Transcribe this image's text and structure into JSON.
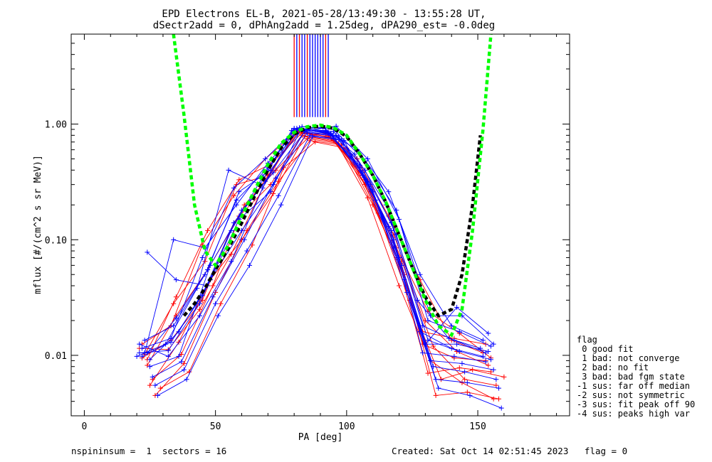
{
  "title_line1": "EPD Electrons EL-B, 2021-05-28/13:49:30 - 13:55:28 UT,",
  "title_line2": "dSectr2add = 0, dPhAng2add = 1.25deg, dPA290_est=  -0.0deg",
  "footer": {
    "left": "nspininsum =  1  sectors = 16",
    "right": "Created: Sat Oct 14 02:51:45 2023   flag = 0"
  },
  "flag_legend": {
    "title": "flag",
    "items": [
      " 0 good fit",
      " 1 bad: not converge",
      " 2 bad: no fit",
      " 3 bad: bad fgm state",
      "-1 sus: far off median",
      "-2 sus: not symmetric",
      "-3 sus: fit peak off 90",
      "-4 sus: peaks high var"
    ]
  },
  "colors": {
    "series_red": "#ff0000",
    "series_blue": "#0000ff",
    "fit_green": "#00ff00",
    "fit_black": "#000000"
  },
  "chart_data": {
    "type": "line",
    "title": "EPD Electrons EL-B, 2021-05-28/13:49:30 - 13:55:28 UT,",
    "xlabel": "PA [deg]",
    "ylabel": "mflux [#/(cm^2 s sr MeV)]",
    "xlim": [
      -5,
      185
    ],
    "ylim": [
      0.003,
      6.0
    ],
    "yscale": "log",
    "xticks": [
      0,
      50,
      100,
      150
    ],
    "xtick_labels": [
      "0",
      "50",
      "100",
      "150"
    ],
    "yticks": [
      0.01,
      0.1,
      1.0
    ],
    "ytick_labels": [
      "0.01",
      "0.10",
      "1.00"
    ],
    "grid": false,
    "series": [
      {
        "color": "red",
        "curves": [
          {
            "x": [
              22,
              33,
              45,
              57,
              69,
              81,
              93,
              105,
              117,
              129,
              141,
              153
            ],
            "y": [
              0.0095,
              0.0135,
              0.03,
              0.14,
              0.33,
              0.85,
              0.78,
              0.42,
              0.12,
              0.0125,
              0.0095,
              0.009
            ]
          },
          {
            "x": [
              24,
              35,
              47,
              59,
              71,
              83,
              95,
              107,
              119,
              131,
              143,
              155
            ],
            "y": [
              0.0082,
              0.022,
              0.055,
              0.16,
              0.3,
              0.8,
              0.72,
              0.3,
              0.07,
              0.007,
              0.0078,
              0.0072
            ]
          },
          {
            "x": [
              21,
              32,
              44,
              56,
              68,
              80,
              92,
              104,
              116,
              128,
              140,
              152
            ],
            "y": [
              0.0115,
              0.0112,
              0.025,
              0.075,
              0.28,
              0.82,
              0.83,
              0.5,
              0.16,
              0.045,
              0.0135,
              0.0105
            ]
          },
          {
            "x": [
              26,
              37,
              49,
              61,
              73,
              85,
              97,
              109,
              121,
              133,
              145,
              157
            ],
            "y": [
              0.0062,
              0.0102,
              0.04,
              0.2,
              0.4,
              0.75,
              0.68,
              0.26,
              0.065,
              0.012,
              0.0062,
              0.0055
            ]
          },
          {
            "x": [
              23,
              34,
              46,
              58,
              70,
              82,
              94,
              106,
              118,
              130,
              142,
              154
            ],
            "y": [
              0.0102,
              0.028,
              0.065,
              0.3,
              0.36,
              0.88,
              0.76,
              0.36,
              0.11,
              0.02,
              0.0108,
              0.0082
            ]
          },
          {
            "x": [
              25,
              36,
              48,
              60,
              72,
              84,
              96,
              108,
              120,
              132,
              144,
              156
            ],
            "y": [
              0.0055,
              0.013,
              0.045,
              0.1,
              0.25,
              0.78,
              0.7,
              0.23,
              0.04,
              0.009,
              0.0058,
              0.0042
            ]
          },
          {
            "x": [
              22,
              33,
              45,
              57,
              69,
              81,
              93,
              105,
              117,
              129,
              141,
              153
            ],
            "y": [
              0.0125,
              0.018,
              0.09,
              0.24,
              0.5,
              0.86,
              0.8,
              0.4,
              0.095,
              0.016,
              0.014,
              0.0125
            ]
          },
          {
            "x": [
              27,
              38,
              50,
              62,
              74,
              86,
              98,
              110,
              122,
              134,
              146,
              158
            ],
            "y": [
              0.0045,
              0.0085,
              0.035,
              0.12,
              0.32,
              0.72,
              0.66,
              0.2,
              0.05,
              0.0045,
              0.0048,
              0.0042
            ]
          },
          {
            "x": [
              24,
              35,
              47,
              59,
              71,
              83,
              95,
              107,
              119,
              131,
              143,
              155
            ],
            "y": [
              0.0092,
              0.032,
              0.12,
              0.33,
              0.45,
              0.84,
              0.74,
              0.33,
              0.085,
              0.024,
              0.0155,
              0.0095
            ]
          },
          {
            "x": [
              29,
              40,
              52,
              64,
              76,
              88,
              100,
              112,
              124,
              136,
              148,
              160
            ],
            "y": [
              0.0052,
              0.0072,
              0.028,
              0.09,
              0.42,
              0.7,
              0.62,
              0.17,
              0.03,
              0.0062,
              0.0075,
              0.0065
            ]
          }
        ]
      },
      {
        "color": "blue",
        "curves": [
          {
            "x": [
              21,
              32,
              44,
              56,
              68,
              80,
              92,
              104,
              116,
              128,
              140,
              152
            ],
            "y": [
              0.0105,
              0.011,
              0.028,
              0.12,
              0.35,
              0.92,
              0.86,
              0.45,
              0.13,
              0.016,
              0.0115,
              0.0098
            ]
          },
          {
            "x": [
              23,
              34,
              46,
              58,
              70,
              82,
              94,
              106,
              118,
              130,
              142,
              154
            ],
            "y": [
              0.0135,
              0.018,
              0.05,
              0.22,
              0.42,
              0.9,
              0.82,
              0.38,
              0.1,
              0.0125,
              0.0125,
              0.0108
            ]
          },
          {
            "x": [
              20,
              31,
              43,
              55,
              67,
              79,
              91,
              103,
              115,
              127,
              139,
              151
            ],
            "y": [
              0.0098,
              0.0125,
              0.038,
              0.4,
              0.3,
              0.88,
              0.94,
              0.55,
              0.2,
              0.03,
              0.014,
              0.0115
            ]
          },
          {
            "x": [
              25,
              36,
              48,
              60,
              72,
              84,
              96,
              108,
              120,
              132,
              144,
              156
            ],
            "y": [
              0.008,
              0.0098,
              0.06,
              0.18,
              0.38,
              0.86,
              0.8,
              0.32,
              0.07,
              0.009,
              0.0085,
              0.0075
            ]
          },
          {
            "x": [
              24,
              35,
              47,
              59,
              71,
              83,
              95,
              107,
              119,
              131,
              143,
              155
            ],
            "y": [
              0.078,
              0.045,
              0.04,
              0.15,
              0.26,
              0.95,
              0.9,
              0.48,
              0.18,
              0.02,
              0.016,
              0.012
            ]
          },
          {
            "x": [
              22,
              33,
              45,
              57,
              69,
              81,
              93,
              105,
              117,
              129,
              141,
              153
            ],
            "y": [
              0.0115,
              0.014,
              0.07,
              0.28,
              0.5,
              0.92,
              0.85,
              0.42,
              0.12,
              0.0105,
              0.0098,
              0.0088
            ]
          },
          {
            "x": [
              26,
              37,
              49,
              61,
              73,
              85,
              97,
              109,
              121,
              133,
              145,
              157
            ],
            "y": [
              0.0065,
              0.0088,
              0.032,
              0.1,
              0.34,
              0.84,
              0.78,
              0.3,
              0.06,
              0.008,
              0.0072,
              0.0062
            ]
          },
          {
            "x": [
              21,
              32,
              44,
              56,
              68,
              80,
              92,
              104,
              116,
              128,
              140,
              152
            ],
            "y": [
              0.0125,
              0.0098,
              0.022,
              0.065,
              0.28,
              0.9,
              0.88,
              0.6,
              0.26,
              0.05,
              0.018,
              0.0135
            ]
          },
          {
            "x": [
              23,
              34,
              46,
              58,
              70,
              82,
              94,
              106,
              118,
              130,
              142,
              154
            ],
            "y": [
              0.0105,
              0.1,
              0.085,
              0.2,
              0.46,
              0.93,
              0.83,
              0.36,
              0.085,
              0.0125,
              0.026,
              0.0155
            ]
          },
          {
            "x": [
              25,
              36,
              48,
              60,
              72,
              84,
              96,
              108,
              120,
              132,
              144,
              156
            ],
            "y": [
              0.0092,
              0.016,
              0.045,
              0.12,
              0.3,
              0.87,
              0.96,
              0.5,
              0.15,
              0.022,
              0.022,
              0.0125
            ]
          },
          {
            "x": [
              27,
              38,
              50,
              62,
              74,
              86,
              98,
              110,
              122,
              134,
              146,
              158
            ],
            "y": [
              0.0055,
              0.0075,
              0.028,
              0.08,
              0.24,
              0.8,
              0.74,
              0.26,
              0.045,
              0.0062,
              0.0058,
              0.0052
            ]
          },
          {
            "x": [
              24,
              35,
              47,
              59,
              71,
              83,
              95,
              107,
              119,
              131,
              143,
              155
            ],
            "y": [
              0.0105,
              0.021,
              0.055,
              0.26,
              0.4,
              0.91,
              0.86,
              0.4,
              0.11,
              0.0135,
              0.0108,
              0.0092
            ]
          },
          {
            "x": [
              22,
              33,
              45,
              57,
              69,
              81,
              93,
              105,
              117,
              129,
              141,
              153
            ],
            "y": [
              0.0098,
              0.013,
              0.033,
              0.14,
              0.32,
              0.89,
              0.84,
              0.44,
              0.14,
              0.018,
              0.0135,
              0.0105
            ]
          },
          {
            "x": [
              28,
              39,
              51,
              63,
              75,
              87,
              99,
              111,
              123,
              135,
              147,
              159
            ],
            "y": [
              0.0045,
              0.0062,
              0.022,
              0.06,
              0.2,
              0.78,
              0.72,
              0.22,
              0.035,
              0.0052,
              0.0045,
              0.0035
            ]
          }
        ]
      }
    ],
    "fit_curves": [
      {
        "color": "green",
        "style": "dashed",
        "x": [
          34,
          38,
          42,
          46,
          50,
          55,
          60,
          65,
          70,
          75,
          80,
          85,
          90,
          95,
          100,
          105,
          110,
          115,
          120,
          125,
          130,
          135,
          140,
          144,
          148,
          152,
          155
        ],
        "y": [
          6.0,
          1.2,
          0.2,
          0.08,
          0.06,
          0.09,
          0.16,
          0.27,
          0.45,
          0.68,
          0.85,
          0.95,
          0.98,
          0.93,
          0.8,
          0.55,
          0.36,
          0.21,
          0.11,
          0.058,
          0.03,
          0.018,
          0.015,
          0.025,
          0.12,
          0.9,
          6.0
        ]
      },
      {
        "color": "black",
        "style": "dashed",
        "x": [
          38,
          42,
          46,
          50,
          55,
          60,
          65,
          70,
          75,
          80,
          85,
          90,
          95,
          100,
          105,
          110,
          115,
          120,
          125,
          130,
          135,
          140,
          144,
          148,
          151
        ],
        "y": [
          0.022,
          0.028,
          0.038,
          0.055,
          0.085,
          0.14,
          0.24,
          0.4,
          0.62,
          0.82,
          0.93,
          0.96,
          0.92,
          0.78,
          0.55,
          0.36,
          0.21,
          0.11,
          0.058,
          0.032,
          0.022,
          0.025,
          0.05,
          0.2,
          0.8
        ]
      }
    ],
    "peak_lines": {
      "x": [
        80,
        81,
        82,
        83,
        84,
        85,
        86,
        87,
        88,
        89,
        90,
        91,
        92,
        93
      ],
      "colors": [
        "red",
        "blue",
        "red",
        "blue",
        "blue",
        "red",
        "blue",
        "blue",
        "blue",
        "blue",
        "blue",
        "blue",
        "red",
        "blue"
      ]
    }
  }
}
